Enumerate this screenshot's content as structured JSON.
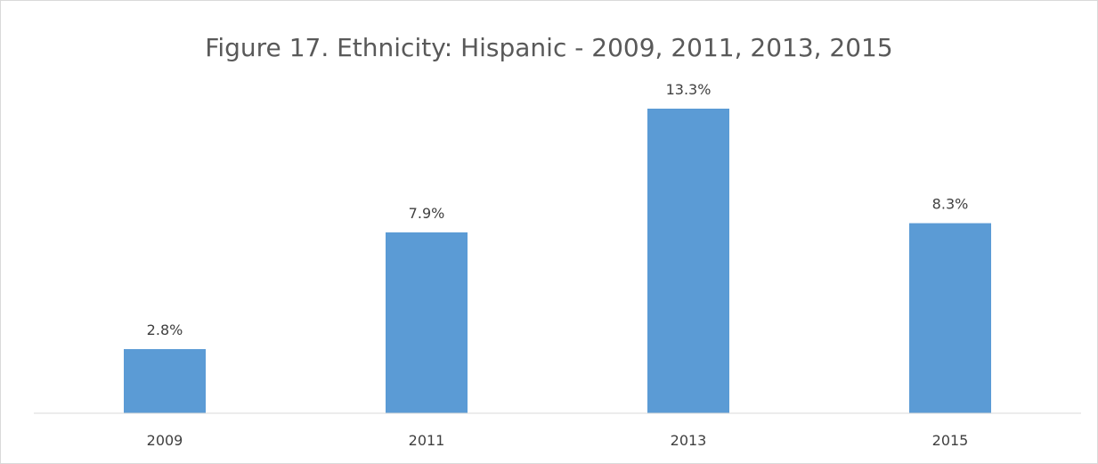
{
  "chart_data": {
    "type": "bar",
    "title": "Figure 17. Ethnicity: Hispanic - 2009, 2011, 2013, 2015",
    "categories": [
      "2009",
      "2011",
      "2013",
      "2015"
    ],
    "values": [
      2.8,
      7.9,
      13.3,
      8.3
    ],
    "data_labels": [
      "2.8%",
      "7.9%",
      "13.3%",
      "8.3%"
    ],
    "xlabel": "",
    "ylabel": "",
    "ylim": [
      0,
      14
    ],
    "grid": false,
    "legend": "none",
    "bar_color": "#5b9bd5",
    "axis_color": "#d9d9d9",
    "text_color": "#595959"
  }
}
